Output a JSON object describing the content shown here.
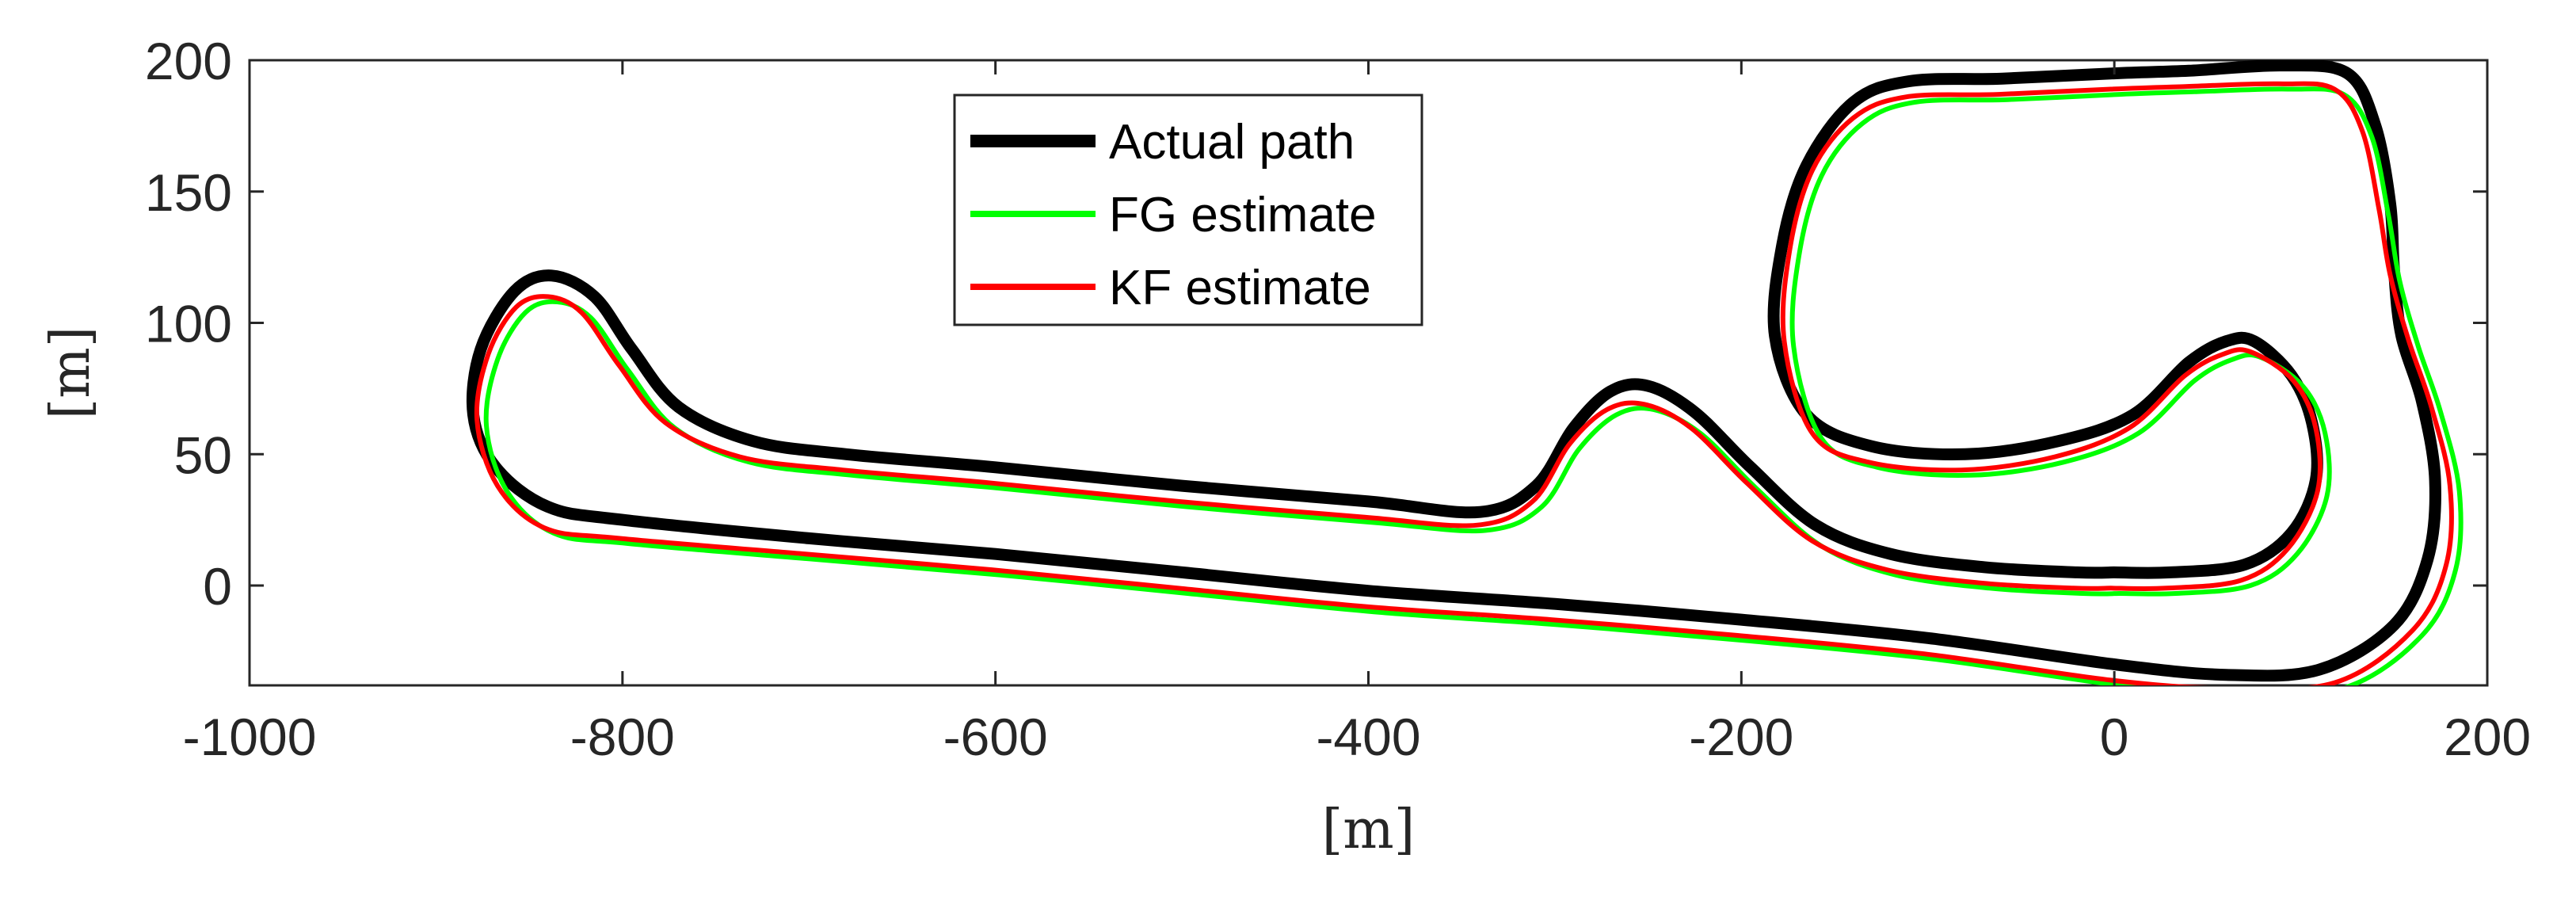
{
  "chart_data": {
    "type": "line",
    "title": "",
    "xlabel": "[m]",
    "ylabel": "[m]",
    "xlim": [
      -1000,
      200
    ],
    "ylim": [
      -38,
      200
    ],
    "xticks": [
      -1000,
      -800,
      -600,
      -400,
      -200,
      0,
      200
    ],
    "yticks": [
      0,
      50,
      100,
      150,
      200
    ],
    "xtick_labels": [
      "-1000",
      "-800",
      "-600",
      "-400",
      "-200",
      "0",
      "200"
    ],
    "ytick_labels": [
      "0",
      "50",
      "100",
      "150",
      "200"
    ],
    "grid": false,
    "legend_position": "top-center",
    "series": [
      {
        "name": "Actual path",
        "color": "#000000",
        "width": "thick",
        "offset": [
          0,
          0
        ],
        "points": [
          [
            0,
            5
          ],
          [
            30,
            5
          ],
          [
            70,
            8
          ],
          [
            95,
            20
          ],
          [
            108,
            40
          ],
          [
            106,
            62
          ],
          [
            95,
            80
          ],
          [
            75,
            93
          ],
          [
            60,
            93
          ],
          [
            40,
            85
          ],
          [
            10,
            65
          ],
          [
            -30,
            55
          ],
          [
            -80,
            50
          ],
          [
            -130,
            53
          ],
          [
            -165,
            65
          ],
          [
            -182,
            95
          ],
          [
            -178,
            130
          ],
          [
            -165,
            160
          ],
          [
            -140,
            184
          ],
          [
            -110,
            192
          ],
          [
            -60,
            193
          ],
          [
            0,
            195
          ],
          [
            40,
            196
          ],
          [
            90,
            198
          ],
          [
            125,
            195
          ],
          [
            140,
            175
          ],
          [
            148,
            145
          ],
          [
            150,
            120
          ],
          [
            154,
            95
          ],
          [
            165,
            70
          ],
          [
            172,
            40
          ],
          [
            168,
            10
          ],
          [
            150,
            -15
          ],
          [
            110,
            -32
          ],
          [
            60,
            -34
          ],
          [
            0,
            -30
          ],
          [
            -100,
            -20
          ],
          [
            -200,
            -13
          ],
          [
            -300,
            -7
          ],
          [
            -400,
            -2
          ],
          [
            -500,
            5
          ],
          [
            -600,
            12
          ],
          [
            -700,
            18
          ],
          [
            -800,
            25
          ],
          [
            -840,
            30
          ],
          [
            -868,
            45
          ],
          [
            -880,
            65
          ],
          [
            -876,
            90
          ],
          [
            -858,
            112
          ],
          [
            -838,
            118
          ],
          [
            -815,
            110
          ],
          [
            -795,
            90
          ],
          [
            -770,
            68
          ],
          [
            -730,
            55
          ],
          [
            -680,
            50
          ],
          [
            -600,
            45
          ],
          [
            -500,
            38
          ],
          [
            -400,
            32
          ],
          [
            -340,
            28
          ],
          [
            -310,
            38
          ],
          [
            -290,
            60
          ],
          [
            -270,
            74
          ],
          [
            -250,
            76
          ],
          [
            -225,
            66
          ],
          [
            -195,
            45
          ],
          [
            -160,
            23
          ],
          [
            -120,
            12
          ],
          [
            -70,
            7
          ],
          [
            -20,
            5
          ],
          [
            0,
            5
          ]
        ]
      },
      {
        "name": "FG estimate",
        "color": "#00ff00",
        "width": "normal",
        "offset": [
          3,
          -4
        ],
        "points": [
          [
            0,
            1
          ],
          [
            30,
            1
          ],
          [
            70,
            4
          ],
          [
            95,
            16
          ],
          [
            111,
            38
          ],
          [
            110,
            62
          ],
          [
            98,
            80
          ],
          [
            75,
            91
          ],
          [
            60,
            90
          ],
          [
            40,
            82
          ],
          [
            10,
            62
          ],
          [
            -30,
            51
          ],
          [
            -80,
            46
          ],
          [
            -130,
            49
          ],
          [
            -160,
            60
          ],
          [
            -175,
            95
          ],
          [
            -172,
            130
          ],
          [
            -160,
            160
          ],
          [
            -138,
            180
          ],
          [
            -110,
            188
          ],
          [
            -60,
            189
          ],
          [
            0,
            191
          ],
          [
            40,
            192
          ],
          [
            90,
            193
          ],
          [
            120,
            191
          ],
          [
            135,
            175
          ],
          [
            144,
            145
          ],
          [
            150,
            120
          ],
          [
            160,
            95
          ],
          [
            172,
            70
          ],
          [
            182,
            40
          ],
          [
            180,
            10
          ],
          [
            162,
            -15
          ],
          [
            120,
            -35
          ],
          [
            60,
            -37
          ],
          [
            0,
            -34
          ],
          [
            -100,
            -24
          ],
          [
            -200,
            -17
          ],
          [
            -300,
            -11
          ],
          [
            -400,
            -6
          ],
          [
            -500,
            1
          ],
          [
            -600,
            8
          ],
          [
            -700,
            14
          ],
          [
            -800,
            20
          ],
          [
            -840,
            24
          ],
          [
            -865,
            40
          ],
          [
            -876,
            65
          ],
          [
            -870,
            90
          ],
          [
            -855,
            108
          ],
          [
            -838,
            112
          ],
          [
            -820,
            106
          ],
          [
            -800,
            86
          ],
          [
            -775,
            64
          ],
          [
            -735,
            51
          ],
          [
            -680,
            46
          ],
          [
            -600,
            41
          ],
          [
            -500,
            34
          ],
          [
            -400,
            28
          ],
          [
            -340,
            25
          ],
          [
            -310,
            34
          ],
          [
            -290,
            56
          ],
          [
            -270,
            69
          ],
          [
            -250,
            71
          ],
          [
            -225,
            62
          ],
          [
            -195,
            41
          ],
          [
            -160,
            19
          ],
          [
            -120,
            8
          ],
          [
            -70,
            3
          ],
          [
            -20,
            1
          ],
          [
            0,
            1
          ]
        ]
      },
      {
        "name": "KF estimate",
        "color": "#ff0000",
        "width": "normal",
        "offset": [
          -2,
          -2
        ],
        "points": [
          [
            0,
            1
          ],
          [
            30,
            1
          ],
          [
            70,
            4
          ],
          [
            95,
            16
          ],
          [
            111,
            38
          ],
          [
            110,
            62
          ],
          [
            98,
            80
          ],
          [
            75,
            91
          ],
          [
            60,
            90
          ],
          [
            40,
            82
          ],
          [
            10,
            62
          ],
          [
            -30,
            51
          ],
          [
            -80,
            46
          ],
          [
            -130,
            49
          ],
          [
            -160,
            60
          ],
          [
            -175,
            95
          ],
          [
            -172,
            130
          ],
          [
            -160,
            160
          ],
          [
            -138,
            180
          ],
          [
            -110,
            188
          ],
          [
            -60,
            189
          ],
          [
            0,
            191
          ],
          [
            40,
            192
          ],
          [
            90,
            193
          ],
          [
            120,
            191
          ],
          [
            135,
            175
          ],
          [
            144,
            145
          ],
          [
            150,
            120
          ],
          [
            160,
            95
          ],
          [
            172,
            70
          ],
          [
            182,
            40
          ],
          [
            180,
            10
          ],
          [
            162,
            -15
          ],
          [
            120,
            -35
          ],
          [
            60,
            -37
          ],
          [
            0,
            -34
          ],
          [
            -100,
            -24
          ],
          [
            -200,
            -17
          ],
          [
            -300,
            -11
          ],
          [
            -400,
            -6
          ],
          [
            -500,
            1
          ],
          [
            -600,
            8
          ],
          [
            -700,
            14
          ],
          [
            -800,
            20
          ],
          [
            -840,
            24
          ],
          [
            -865,
            40
          ],
          [
            -876,
            65
          ],
          [
            -870,
            90
          ],
          [
            -855,
            108
          ],
          [
            -838,
            112
          ],
          [
            -820,
            106
          ],
          [
            -800,
            86
          ],
          [
            -775,
            64
          ],
          [
            -735,
            51
          ],
          [
            -680,
            46
          ],
          [
            -600,
            41
          ],
          [
            -500,
            34
          ],
          [
            -400,
            28
          ],
          [
            -340,
            25
          ],
          [
            -310,
            34
          ],
          [
            -290,
            56
          ],
          [
            -270,
            69
          ],
          [
            -250,
            71
          ],
          [
            -225,
            62
          ],
          [
            -195,
            41
          ],
          [
            -160,
            19
          ],
          [
            -120,
            8
          ],
          [
            -70,
            3
          ],
          [
            -20,
            1
          ],
          [
            0,
            1
          ]
        ]
      }
    ]
  }
}
